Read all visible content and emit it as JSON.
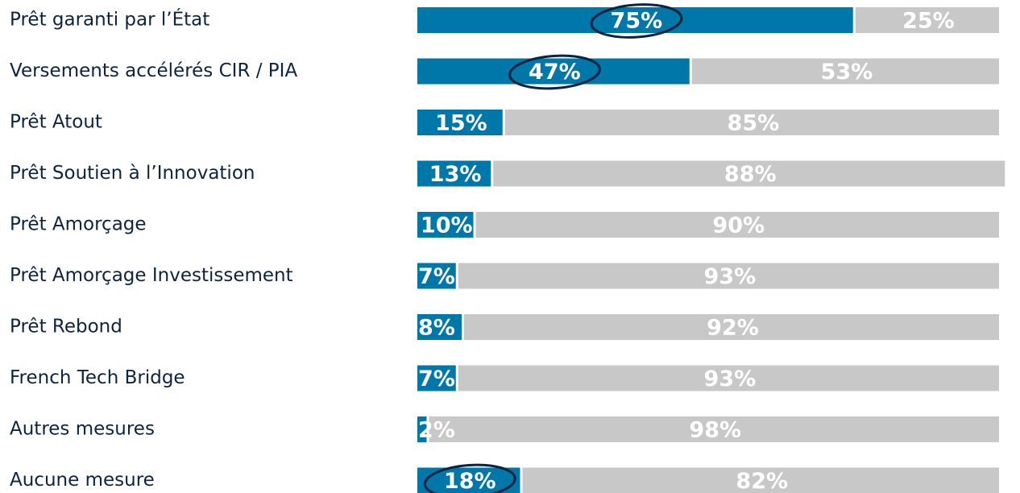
{
  "chart_data": {
    "type": "stacked-bar",
    "orientation": "horizontal",
    "categories": [
      "Prêt garanti par l’État",
      "Versements accélérés CIR / PIA",
      "Prêt Atout",
      "Prêt Soutien à l’Innovation",
      "Prêt Amorçage",
      "Prêt Amorçage Investissement",
      "Prêt Rebond",
      "French Tech Bridge",
      "Autres mesures",
      "Aucune mesure"
    ],
    "series": [
      {
        "color": "#0077a9",
        "values": [
          75,
          47,
          15,
          13,
          10,
          7,
          8,
          7,
          2,
          18
        ],
        "value_labels": [
          "75%",
          "47%",
          "15%",
          "13%",
          "10%",
          "7%",
          "8%",
          "7%",
          "2%",
          "18%"
        ]
      },
      {
        "color": "#c8c8c8",
        "values": [
          25,
          53,
          85,
          88,
          90,
          93,
          92,
          93,
          98,
          82
        ],
        "value_labels": [
          "25%",
          "53%",
          "85%",
          "88%",
          "90%",
          "93%",
          "92%",
          "93%",
          "98%",
          "82%"
        ]
      }
    ],
    "circled": [
      0,
      1,
      9
    ]
  }
}
